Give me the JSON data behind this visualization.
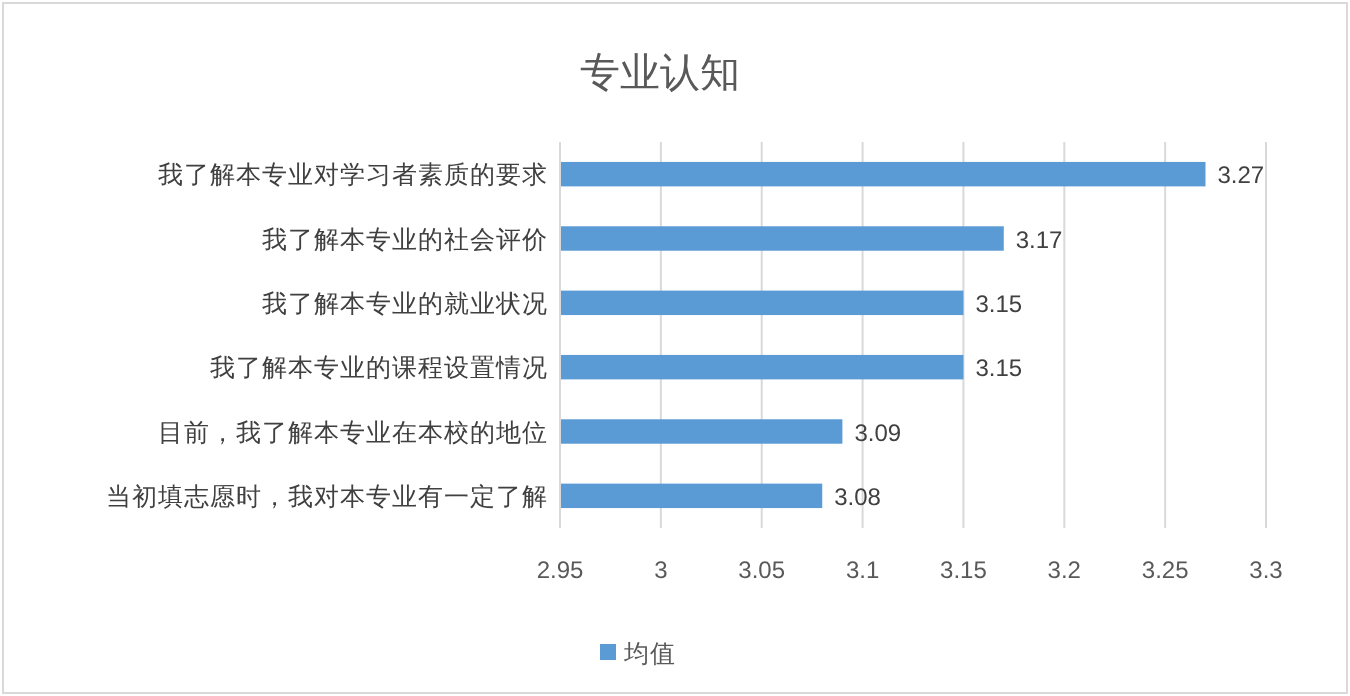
{
  "chart_data": {
    "type": "bar",
    "orientation": "horizontal",
    "title": "专业认知",
    "categories": [
      "我了解本专业对学习者素质的要求",
      "我了解本专业的社会评价",
      "我了解本专业的就业状况",
      "我了解本专业的课程设置情况",
      "目前，我了解本专业在本校的地位",
      "当初填志愿时，我对本专业有一定了解"
    ],
    "series": [
      {
        "name": "均值",
        "color": "#5b9bd5",
        "values": [
          3.27,
          3.17,
          3.15,
          3.15,
          3.09,
          3.08
        ]
      }
    ],
    "xlim": [
      2.95,
      3.3
    ],
    "xticks": [
      2.95,
      3,
      3.05,
      3.1,
      3.15,
      3.2,
      3.25,
      3.3
    ],
    "grid": "x",
    "legend": "bottom",
    "data_labels": true
  }
}
